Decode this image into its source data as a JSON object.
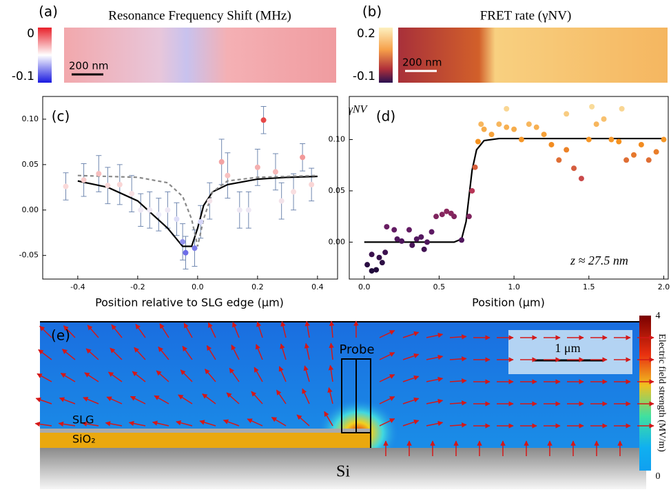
{
  "chart_data": [
    {
      "type": "heatmap",
      "panel_label": "(a)",
      "title": "Resonance Frequency Shift (MHz)",
      "colorbar_ticks": [
        0,
        -0.1
      ],
      "scale_bar": "200 nm"
    },
    {
      "type": "heatmap",
      "panel_label": "(b)",
      "title": "FRET rate (γNV)",
      "colorbar_ticks": [
        0.2,
        -0.1
      ],
      "scale_bar": "200 nm"
    },
    {
      "type": "scatter",
      "panel_label": "(c)",
      "x_label": "Position relative to SLG edge (μm)",
      "xlim": [
        -0.517,
        0.467
      ],
      "ylim": [
        -0.076,
        0.125
      ],
      "xticks": [
        -0.4,
        -0.2,
        {
          "value": 0,
          "label": "0.0"
        },
        0.2,
        0.4
      ],
      "yticks": [
        {
          "value": -0.05,
          "label": "-0.05"
        },
        {
          "value": 0,
          "label": "0.00"
        },
        0.05,
        {
          "value": 0.1,
          "label": "0.10"
        }
      ],
      "points": {
        "x": [
          -0.44,
          -0.38,
          -0.33,
          -0.3,
          -0.26,
          -0.22,
          -0.19,
          -0.16,
          -0.13,
          -0.1,
          -0.07,
          -0.05,
          -0.04,
          -0.01,
          0.01,
          0.04,
          0.08,
          0.1,
          0.14,
          0.17,
          0.2,
          0.22,
          0.26,
          0.28,
          0.32,
          0.35,
          0.38
        ],
        "values": [
          0.026,
          0.033,
          0.04,
          0.027,
          0.028,
          0.018,
          0.0,
          0.0,
          -0.005,
          0.0,
          -0.01,
          -0.035,
          -0.047,
          -0.042,
          -0.013,
          0.01,
          0.053,
          0.038,
          0.0,
          0.0,
          0.047,
          0.099,
          0.042,
          0.01,
          0.02,
          0.058,
          0.028
        ],
        "errors": [
          0.015,
          0.018,
          0.02,
          0.02,
          0.022,
          0.02,
          0.018,
          0.02,
          0.018,
          0.02,
          0.018,
          0.02,
          0.018,
          0.02,
          0.018,
          0.02,
          0.025,
          0.025,
          0.02,
          0.02,
          0.02,
          0.015,
          0.02,
          0.02,
          0.02,
          0.015,
          0.018
        ]
      },
      "lines": [
        {
          "x": [
            -0.4,
            -0.3,
            -0.2,
            -0.1,
            -0.05,
            -0.02,
            0,
            0.02,
            0.05,
            0.1,
            0.2,
            0.3,
            0.4
          ],
          "values": [
            0.032,
            0.025,
            0.01,
            -0.02,
            -0.04,
            -0.04,
            -0.02,
            0.005,
            0.02,
            0.028,
            0.034,
            0.036,
            0.037
          ],
          "color": "#000000",
          "dashed": false
        },
        {
          "x": [
            -0.4,
            -0.2,
            -0.1,
            -0.05,
            -0.02,
            0,
            0.02,
            0.05,
            0.1,
            0.2,
            0.4
          ],
          "values": [
            0.038,
            0.036,
            0.03,
            0.015,
            -0.01,
            -0.04,
            -0.01,
            0.02,
            0.032,
            0.036,
            0.038
          ],
          "color": "#888888",
          "dashed": true
        }
      ]
    },
    {
      "type": "scatter",
      "panel_label": "(d)",
      "y_label": "γNV",
      "x_label": "Position (μm)",
      "annotation": "z ≈ 27.5 nm",
      "xlim": [
        -0.1,
        2.03
      ],
      "ylim": [
        -0.036,
        0.142
      ],
      "xticks": [
        {
          "value": 0,
          "label": "0.0"
        },
        0.5,
        {
          "value": 1,
          "label": "1.0"
        },
        1.5,
        {
          "value": 2,
          "label": "2.0"
        }
      ],
      "yticks": [
        {
          "value": 0,
          "label": "0.00"
        },
        0.05,
        {
          "value": 0.1,
          "label": "0.10"
        }
      ],
      "points": {
        "x": [
          0.02,
          0.05,
          0.08,
          0.1,
          0.12,
          0.14,
          0.05,
          0.15,
          0.2,
          0.22,
          0.25,
          0.3,
          0.32,
          0.35,
          0.38,
          0.4,
          0.42,
          0.45,
          0.48,
          0.52,
          0.55,
          0.58,
          0.6,
          0.65,
          0.7,
          0.72,
          0.74,
          0.76,
          0.78,
          0.8,
          0.85,
          0.9,
          0.95,
          1.0,
          1.05,
          1.1,
          1.15,
          1.2,
          1.25,
          1.3,
          1.35,
          1.4,
          1.45,
          1.5,
          1.55,
          1.6,
          1.65,
          1.7,
          1.75,
          1.8,
          1.85,
          1.9,
          1.95,
          2.0,
          1.52,
          1.72,
          0.95,
          1.35
        ],
        "values": [
          -0.022,
          -0.028,
          -0.027,
          -0.015,
          -0.02,
          -0.01,
          -0.012,
          0.015,
          0.012,
          0.003,
          0.001,
          0.012,
          -0.003,
          0.003,
          0.005,
          -0.007,
          0.0,
          0.01,
          0.025,
          0.027,
          0.03,
          0.028,
          0.025,
          0.002,
          0.025,
          0.05,
          0.073,
          0.098,
          0.115,
          0.11,
          0.105,
          0.115,
          0.112,
          0.11,
          0.1,
          0.115,
          0.112,
          0.105,
          0.095,
          0.08,
          0.09,
          0.072,
          0.062,
          0.1,
          0.115,
          0.12,
          0.1,
          0.098,
          0.08,
          0.085,
          0.095,
          0.08,
          0.088,
          0.1,
          0.132,
          0.13,
          0.13,
          0.125
        ]
      },
      "lines": [
        {
          "x": [
            0,
            0.6,
            0.65,
            0.68,
            0.7,
            0.72,
            0.75,
            0.8,
            0.9,
            2.0
          ],
          "values": [
            0,
            0,
            0.003,
            0.02,
            0.045,
            0.07,
            0.09,
            0.099,
            0.101,
            0.101
          ],
          "color": "#000000",
          "dashed": false
        }
      ]
    },
    {
      "type": "field_map",
      "panel_label": "(e)",
      "probe": "Probe",
      "layer_top": "SLG",
      "layer_mid": "SiO₂",
      "layer_bottom": "Si",
      "scale_bar": "1 μm",
      "colorbar_label": "Electric field strength (MV/m)",
      "colorbar_ticks": [
        4,
        0
      ]
    }
  ]
}
